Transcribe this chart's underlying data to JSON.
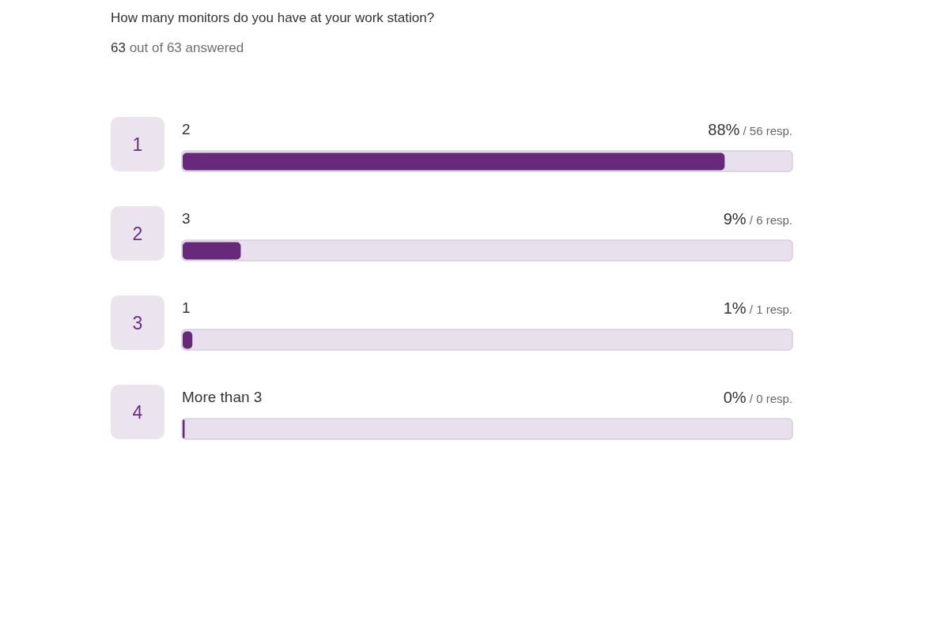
{
  "chart_data": {
    "type": "bar",
    "orientation": "horizontal",
    "title": "How many monitors do you have at your work station?",
    "subtitle": "63 out of 63 answered",
    "categories": [
      "2",
      "3",
      "1",
      "More than 3"
    ],
    "values": [
      56,
      6,
      1,
      0
    ],
    "color": "#672a7b",
    "xlim": [
      0,
      63
    ],
    "bands": [
      {
        "axis": "x",
        "from": 0,
        "to": 63,
        "color": "#e8e0ec"
      }
    ],
    "value_labels": [
      "88% / 56 resp.",
      "9% / 6 resp.",
      "1% / 1 resp.",
      "0% / 0 resp."
    ],
    "annotations": [
      "1",
      "2",
      "3",
      "4"
    ]
  }
}
